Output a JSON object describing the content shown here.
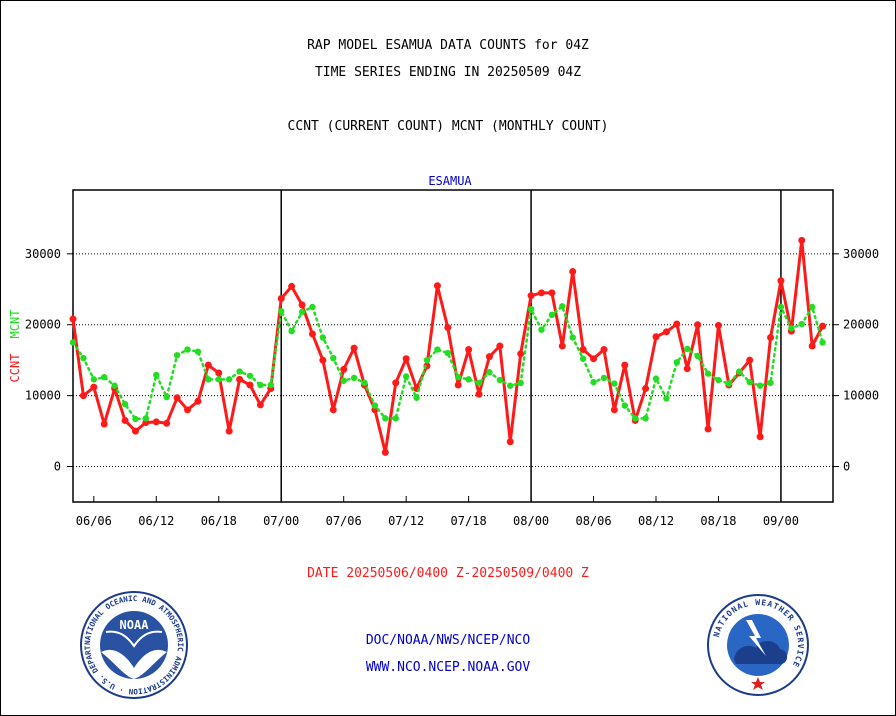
{
  "header": {
    "title1": "RAP MODEL ESAMUA DATA COUNTS for 04Z",
    "title2": "TIME SERIES ENDING IN 20250509 04Z",
    "title3": "CCNT (CURRENT COUNT) MCNT (MONTHLY COUNT)"
  },
  "footer": {
    "date_range": "DATE 20250506/0400 Z-20250509/0400 Z",
    "org": "DOC/NOAA/NWS/NCEP/NCO",
    "url": "WWW.NCO.NCEP.NOAA.GOV"
  },
  "logos": {
    "noaa_text": "NOAA",
    "noaa_ring": "NATIONAL OCEANIC AND ATMOSPHERIC ADMINISTRATION · U.S. DEPARTMENT OF COMMERCE ·",
    "nws_ring": "NATIONAL WEATHER SERVICE"
  },
  "colors": {
    "ccnt": "#ff1a1a",
    "mcnt": "#22dd22",
    "station_label": "#0000cc",
    "footer_red": "#ff1a1a",
    "footer_blue": "#0000cc"
  },
  "chart_data": {
    "type": "line",
    "title": "ESAMUA",
    "ylabel_left": [
      "CCNT",
      "MCNT"
    ],
    "ylim": [
      -5000,
      39000
    ],
    "yticks": [
      0,
      10000,
      20000,
      30000
    ],
    "ytick_labels": [
      "0",
      "10000",
      "20000",
      "30000"
    ],
    "grid": true,
    "xlim": [
      0,
      73
    ],
    "x_tick_positions": [
      2,
      8,
      14,
      20,
      26,
      32,
      38,
      44,
      50,
      56,
      62,
      68,
      74
    ],
    "x_tick_labels": [
      "06/06",
      "06/12",
      "06/18",
      "07/00",
      "07/06",
      "07/12",
      "07/18",
      "08/00",
      "08/06",
      "08/12",
      "08/18",
      "09/00",
      ""
    ],
    "day_boundaries": [
      20,
      44,
      68
    ],
    "series": [
      {
        "name": "CCNT",
        "style": "solid",
        "values": [
          20800,
          10000,
          11200,
          6000,
          11000,
          6500,
          5000,
          6200,
          6300,
          6100,
          9700,
          8000,
          9200,
          14300,
          13200,
          5000,
          12300,
          11500,
          8700,
          11000,
          23700,
          25400,
          22800,
          18700,
          15000,
          8000,
          13700,
          16700,
          11500,
          8000,
          2000,
          11800,
          15200,
          11000,
          14200,
          25500,
          19600,
          11500,
          16500,
          10200,
          15500,
          17000,
          3500,
          15900,
          24100,
          24500,
          24500,
          17000,
          27500,
          16500,
          15200,
          16500,
          8000,
          14300,
          6500,
          11000,
          18300,
          19000,
          20100,
          13800,
          20000,
          5300,
          19900,
          11500,
          13200,
          15000,
          4200,
          18200,
          26200,
          19100,
          31900,
          17000,
          19800
        ]
      },
      {
        "name": "MCNT",
        "style": "dotted",
        "values": [
          17500,
          15300,
          12300,
          12600,
          11400,
          8800,
          6700,
          6800,
          12900,
          9800,
          15700,
          16500,
          16200,
          12300,
          12300,
          12300,
          13400,
          12800,
          11500,
          11500,
          21900,
          19100,
          21800,
          22500,
          18200,
          15300,
          12100,
          12500,
          11800,
          8600,
          6800,
          6800,
          12700,
          9700,
          15000,
          16500,
          16000,
          12600,
          12300,
          11800,
          13300,
          12200,
          11400,
          11800,
          22200,
          19300,
          21400,
          22600,
          18200,
          15200,
          11900,
          12500,
          11700,
          8600,
          6800,
          6800,
          12400,
          9600,
          14700,
          16600,
          15600,
          13100,
          12200,
          11700,
          13400,
          11900,
          11400,
          11800,
          22500,
          19500,
          20100,
          22500,
          17500
        ]
      }
    ]
  }
}
